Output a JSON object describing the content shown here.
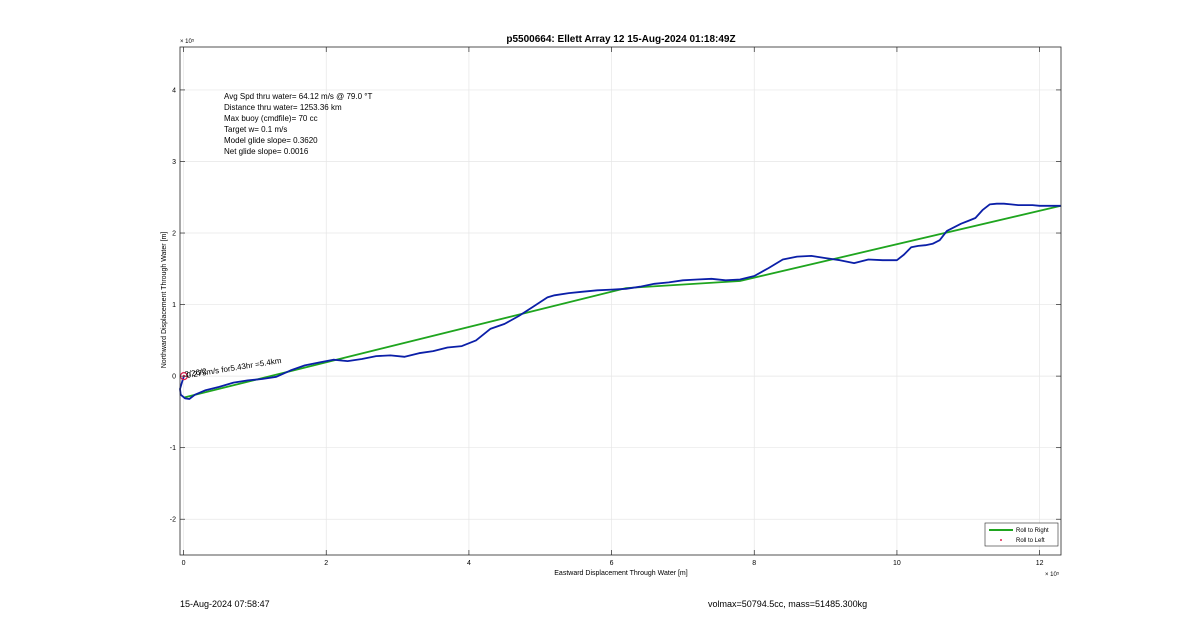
{
  "chart_data": {
    "type": "line",
    "title": "p5500664: Ellett Array 12 15-Aug-2024 01:18:49Z",
    "xlabel": "Eastward Displacement Through Water [m]",
    "ylabel": "Northward Displacement Through Water [m]",
    "x_exponent_label": "× 10⁵",
    "y_exponent_label": "× 10⁵",
    "xlim": [
      -5000,
      1230000
    ],
    "ylim": [
      -250000,
      460000
    ],
    "xticks": [
      0,
      200000,
      400000,
      600000,
      800000,
      1000000,
      1200000
    ],
    "xtick_labels": [
      "0",
      "2",
      "4",
      "6",
      "8",
      "10",
      "12"
    ],
    "yticks": [
      -200000,
      -100000,
      0,
      100000,
      200000,
      300000,
      400000
    ],
    "ytick_labels": [
      "-2",
      "-1",
      "0",
      "1",
      "2",
      "3",
      "4"
    ],
    "grid": true,
    "legend_position": "bottom-right",
    "stats_lines": [
      "Avg Spd thru water= 64.12 m/s @  79.0 °T",
      "Distance thru water= 1253.36 km",
      "Max buoy (cmdfile)= 70 cc",
      "Target w= 0.1 m/s",
      "Model glide slope= 0.3620",
      "Net glide slope= 0.0016"
    ],
    "annotation": "0.275m/s for5.43hr =5.4km",
    "annotation_overlap": "2/26/2",
    "series": [
      {
        "name": "Roll to Right",
        "color": "#1fa51f",
        "x": [
          0,
          620000,
          780000,
          1230000
        ],
        "y": [
          -30000,
          123000,
          133000,
          238000
        ]
      },
      {
        "name": "Roll to Left",
        "color": "#e0204f",
        "marker": "dot",
        "x": [],
        "y": []
      },
      {
        "name": "",
        "color": "#0b1fa8",
        "x": [
          500,
          -2000,
          -5000,
          -4000,
          2000,
          8000,
          16000,
          30000,
          50000,
          70000,
          90000,
          110000,
          130000,
          150000,
          170000,
          190000,
          210000,
          230000,
          250000,
          270000,
          290000,
          310000,
          330000,
          350000,
          370000,
          390000,
          410000,
          430000,
          450000,
          470000,
          490000,
          510000,
          520000,
          540000,
          560000,
          580000,
          600000,
          620000,
          640000,
          660000,
          680000,
          700000,
          720000,
          740000,
          760000,
          780000,
          800000,
          820000,
          840000,
          860000,
          880000,
          900000,
          920000,
          940000,
          960000,
          980000,
          1000000,
          1010000,
          1020000,
          1030000,
          1040000,
          1050000,
          1060000,
          1070000,
          1080000,
          1090000,
          1100000,
          1110000,
          1120000,
          1130000,
          1140000,
          1150000,
          1160000,
          1170000,
          1180000,
          1190000,
          1200000,
          1210000,
          1220000,
          1230000
        ],
        "y": [
          0,
          -8000,
          -18000,
          -26000,
          -31000,
          -32000,
          -26000,
          -20000,
          -15000,
          -9000,
          -6000,
          -4000,
          -1000,
          8000,
          15000,
          19000,
          23000,
          21000,
          24000,
          28000,
          29000,
          27000,
          32000,
          35000,
          40000,
          42000,
          50000,
          66000,
          73000,
          84000,
          97000,
          110000,
          113000,
          116000,
          118000,
          120000,
          121000,
          122000,
          125000,
          129000,
          131000,
          134000,
          135000,
          136000,
          134000,
          135000,
          140000,
          151000,
          163000,
          167000,
          168000,
          165000,
          162000,
          158000,
          163000,
          162000,
          162000,
          170000,
          180000,
          182000,
          183000,
          185000,
          190000,
          203000,
          208000,
          213000,
          217000,
          221000,
          232000,
          240000,
          241000,
          241000,
          240000,
          239000,
          239000,
          239000,
          238000,
          238000,
          238000,
          238000
        ]
      }
    ],
    "start_marker": {
      "x": 500,
      "y": 0,
      "color": "#e0204f"
    }
  },
  "footer": {
    "timestamp": "15-Aug-2024 07:58:47",
    "vol_mass": "volmax=50794.5cc, mass=51485.300kg"
  },
  "colors": {
    "axes": "#262626",
    "grid": "#e6e6e6"
  }
}
